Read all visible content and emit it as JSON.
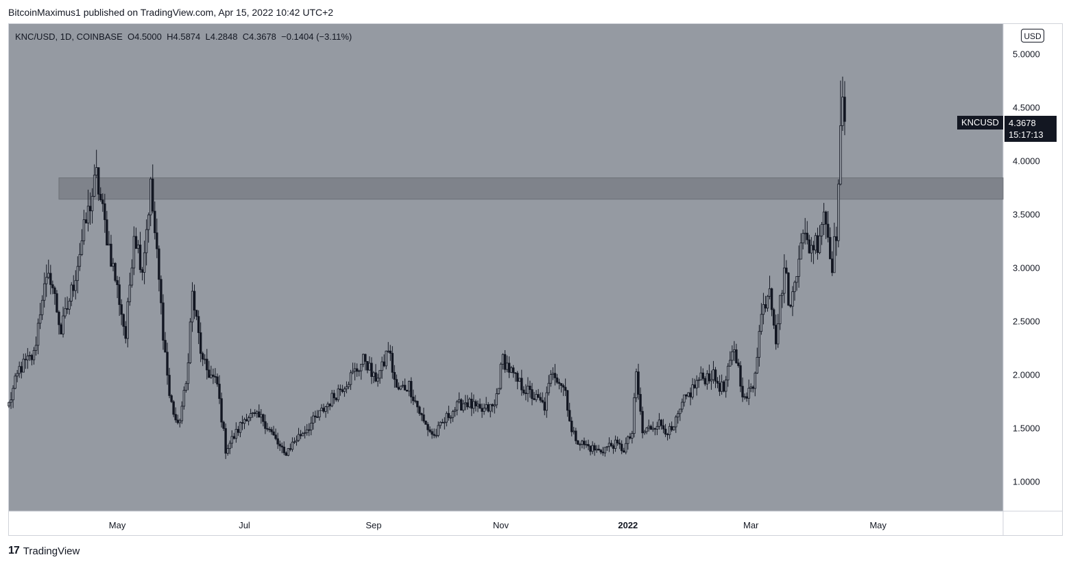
{
  "header": {
    "publisher": "BitcoinMaximus1 published on TradingView.com, Apr 15, 2022 10:42 UTC+2"
  },
  "legend": {
    "symbol": "KNC/USD, 1D, COINBASE",
    "o_label": "O",
    "o_value": "4.5000",
    "h_label": "H",
    "h_value": "4.5874",
    "l_label": "L",
    "l_value": "4.2848",
    "c_label": "C",
    "c_value": "4.3678",
    "change": "−0.1404 (−3.11%)"
  },
  "currency_button": "USD",
  "last_price": {
    "ticker": "KNCUSD",
    "value": "4.3678",
    "countdown": "15:17:13"
  },
  "footer": {
    "brand": "TradingView",
    "logo_glyph": "17"
  },
  "colors": {
    "pane_bg": "#959aa2",
    "candle": "#131722",
    "zone_fill": "#7f838b",
    "zone_border": "#6d7178"
  },
  "chart_data": {
    "type": "candlestick",
    "title": "KNC/USD, 1D, COINBASE",
    "x_tick_labels": [
      "May",
      "Jul",
      "Sep",
      "Nov",
      "2022",
      "Mar",
      "May"
    ],
    "y_tick_labels": [
      "1.0000",
      "1.5000",
      "2.0000",
      "2.5000",
      "3.0000",
      "3.5000",
      "4.0000",
      "4.5000",
      "5.0000"
    ],
    "ylim": [
      0.72,
      5.28
    ],
    "x_range": [
      "2021-03-10",
      "2022-06-30"
    ],
    "grid": false,
    "resistance_zone": {
      "from": "2021-04-03",
      "to": "2022-06-30",
      "low": 3.64,
      "high": 3.84
    },
    "anchors": [
      [
        "2021-03-10",
        1.72
      ],
      [
        "2021-03-15",
        2.05
      ],
      [
        "2021-03-22",
        2.18
      ],
      [
        "2021-03-26",
        2.75
      ],
      [
        "2021-03-30",
        2.92
      ],
      [
        "2021-04-04",
        2.4
      ],
      [
        "2021-04-10",
        2.85
      ],
      [
        "2021-04-14",
        3.25
      ],
      [
        "2021-04-18",
        3.6
      ],
      [
        "2021-04-21",
        3.85
      ],
      [
        "2021-04-25",
        3.4
      ],
      [
        "2021-05-02",
        2.7
      ],
      [
        "2021-05-05",
        2.35
      ],
      [
        "2021-05-09",
        3.35
      ],
      [
        "2021-05-13",
        3.0
      ],
      [
        "2021-05-17",
        3.75
      ],
      [
        "2021-05-20",
        3.1
      ],
      [
        "2021-05-23",
        2.4
      ],
      [
        "2021-05-26",
        1.8
      ],
      [
        "2021-05-30",
        1.5
      ],
      [
        "2021-06-03",
        1.9
      ],
      [
        "2021-06-06",
        2.75
      ],
      [
        "2021-06-11",
        2.1
      ],
      [
        "2021-06-18",
        1.9
      ],
      [
        "2021-06-22",
        1.3
      ],
      [
        "2021-06-27",
        1.45
      ],
      [
        "2021-07-02",
        1.62
      ],
      [
        "2021-07-10",
        1.58
      ],
      [
        "2021-07-20",
        1.25
      ],
      [
        "2021-07-26",
        1.4
      ],
      [
        "2021-08-05",
        1.6
      ],
      [
        "2021-08-15",
        1.85
      ],
      [
        "2021-08-22",
        2.0
      ],
      [
        "2021-08-28",
        2.15
      ],
      [
        "2021-09-01",
        1.95
      ],
      [
        "2021-09-05",
        2.05
      ],
      [
        "2021-09-08",
        2.25
      ],
      [
        "2021-09-12",
        1.85
      ],
      [
        "2021-09-18",
        1.9
      ],
      [
        "2021-09-25",
        1.55
      ],
      [
        "2021-09-30",
        1.42
      ],
      [
        "2021-10-08",
        1.65
      ],
      [
        "2021-10-15",
        1.75
      ],
      [
        "2021-10-22",
        1.65
      ],
      [
        "2021-10-29",
        1.7
      ],
      [
        "2021-11-02",
        2.15
      ],
      [
        "2021-11-08",
        1.95
      ],
      [
        "2021-11-15",
        1.82
      ],
      [
        "2021-11-22",
        1.7
      ],
      [
        "2021-11-26",
        2.05
      ],
      [
        "2021-12-02",
        1.85
      ],
      [
        "2021-12-05",
        1.45
      ],
      [
        "2021-12-10",
        1.35
      ],
      [
        "2021-12-18",
        1.28
      ],
      [
        "2021-12-25",
        1.35
      ],
      [
        "2021-12-30",
        1.3
      ],
      [
        "2022-01-03",
        1.45
      ],
      [
        "2022-01-05",
        2.0
      ],
      [
        "2022-01-08",
        1.45
      ],
      [
        "2022-01-15",
        1.55
      ],
      [
        "2022-01-22",
        1.45
      ],
      [
        "2022-01-28",
        1.75
      ],
      [
        "2022-02-04",
        1.95
      ],
      [
        "2022-02-10",
        2.0
      ],
      [
        "2022-02-16",
        1.85
      ],
      [
        "2022-02-21",
        2.25
      ],
      [
        "2022-02-26",
        1.75
      ],
      [
        "2022-03-02",
        1.9
      ],
      [
        "2022-03-06",
        2.55
      ],
      [
        "2022-03-10",
        2.85
      ],
      [
        "2022-03-13",
        2.35
      ],
      [
        "2022-03-17",
        3.0
      ],
      [
        "2022-03-20",
        2.6
      ],
      [
        "2022-03-25",
        3.3
      ],
      [
        "2022-03-29",
        3.2
      ],
      [
        "2022-04-02",
        3.25
      ],
      [
        "2022-04-05",
        3.55
      ],
      [
        "2022-04-09",
        3.05
      ],
      [
        "2022-04-11",
        3.35
      ],
      [
        "2022-04-13",
        4.2
      ],
      [
        "2022-04-14",
        4.5
      ],
      [
        "2022-04-15",
        4.37
      ]
    ]
  }
}
